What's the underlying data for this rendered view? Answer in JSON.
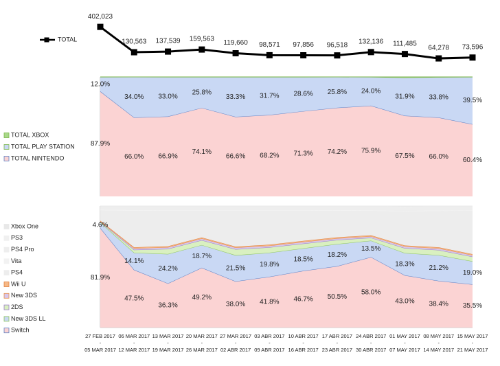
{
  "chart_data": [
    {
      "type": "line",
      "series": [
        {
          "name": "TOTAL",
          "color": "#000000",
          "values": [
            402023,
            130563,
            137539,
            159563,
            119660,
            98571,
            97856,
            96518,
            132136,
            111485,
            64278,
            73596
          ],
          "value_labels": [
            "402,023",
            "130,563",
            "137,539",
            "159,563",
            "119,660",
            "98,571",
            "97,856",
            "96,518",
            "132,136",
            "111,485",
            "64,278",
            "73,596"
          ]
        }
      ],
      "ylim": [
        0,
        420000
      ]
    },
    {
      "type": "area",
      "stacked": true,
      "ylim": [
        0,
        100
      ],
      "series": [
        {
          "name": "TOTAL NINTENDO",
          "color": "#fbd3d3",
          "line_color": "#5b7fc4",
          "values": [
            87.9,
            66.0,
            66.9,
            74.1,
            66.6,
            68.2,
            71.3,
            74.2,
            75.9,
            67.5,
            66.0,
            60.4
          ],
          "value_labels": [
            "87.9%",
            "66.0%",
            "66.9%",
            "74.1%",
            "66.6%",
            "68.2%",
            "71.3%",
            "74.2%",
            "75.9%",
            "67.5%",
            "66.0%",
            "60.4%"
          ]
        },
        {
          "name": "TOTAL PLAY STATION",
          "color": "#c9d8f4",
          "line_color": "#7ab648",
          "values": [
            12.0,
            34.0,
            33.0,
            25.8,
            33.3,
            31.7,
            28.6,
            25.8,
            24.0,
            31.9,
            33.8,
            39.5
          ],
          "value_labels": [
            "12.0%",
            "34.0%",
            "33.0%",
            "25.8%",
            "33.3%",
            "31.7%",
            "28.6%",
            "25.8%",
            "24.0%",
            "31.9%",
            "33.8%",
            "39.5%"
          ]
        },
        {
          "name": "TOTAL XBOX",
          "color": "#a9d88a",
          "line_color": "#7ab648",
          "values": [
            0.1,
            0.0,
            0.1,
            0.1,
            0.1,
            0.1,
            0.1,
            0.0,
            0.1,
            0.6,
            0.2,
            0.1
          ]
        }
      ]
    },
    {
      "type": "area",
      "stacked": true,
      "ylim": [
        0,
        100
      ],
      "categories": [
        [
          "27 FEB 2017",
          "05 MAR 2017"
        ],
        [
          "06 MAR 2017",
          "12 MAR 2017"
        ],
        [
          "13 MAR 2017",
          "19 MAR 2017"
        ],
        [
          "20 MAR 2017",
          "26 MAR 2017"
        ],
        [
          "27 MAR 2017",
          "02 ABR 2017"
        ],
        [
          "03 ABR 2017",
          "09 ABR 2017"
        ],
        [
          "10 ABR 2017",
          "16 ABR 2017"
        ],
        [
          "17 ABR 2017",
          "23 ABR 2017"
        ],
        [
          "24 ABR 2017",
          "30 ABR 2017"
        ],
        [
          "01 MAY 2017",
          "07 MAY 2017"
        ],
        [
          "08 MAY 2017",
          "14 MAY 2017"
        ],
        [
          "15 MAY 2017",
          "21 MAY 2017"
        ]
      ],
      "category_separator": "-",
      "series": [
        {
          "name": "Switch",
          "color": "#fbd3d3",
          "line_color": "#5b7fc4",
          "values": [
            81.9,
            47.5,
            36.3,
            49.2,
            38.0,
            41.8,
            46.7,
            50.5,
            58.0,
            43.0,
            38.4,
            35.5
          ],
          "value_labels": [
            "81.9%",
            "47.5%",
            "36.3%",
            "49.2%",
            "38.0%",
            "41.8%",
            "46.7%",
            "50.5%",
            "58.0%",
            "43.0%",
            "38.4%",
            "35.5%"
          ]
        },
        {
          "name": "New 3DS LL",
          "color": "#c9d8f4",
          "line_color": "#8cc45a",
          "values": [
            4.6,
            14.1,
            24.2,
            18.7,
            21.5,
            19.8,
            18.5,
            18.2,
            13.5,
            18.3,
            21.2,
            19.0
          ],
          "value_labels": [
            "4.6%",
            "14.1%",
            "24.2%",
            "18.7%",
            "21.5%",
            "19.8%",
            "18.5%",
            "18.2%",
            "13.5%",
            "18.3%",
            "21.2%",
            "19.0%"
          ]
        },
        {
          "name": "2DS",
          "color": "#d9f0c0",
          "line_color": "#9a7cc8",
          "values": [
            0.6,
            2.4,
            4.2,
            4.0,
            4.9,
            4.4,
            3.9,
            3.4,
            2.4,
            4.0,
            4.2,
            3.8
          ]
        },
        {
          "name": "New 3DS",
          "color": "#d8c6ec",
          "line_color": "#e8904a",
          "values": [
            0.4,
            1.2,
            1.4,
            1.4,
            1.4,
            1.4,
            1.4,
            1.3,
            1.2,
            1.4,
            1.4,
            1.3
          ]
        },
        {
          "name": "Wii U",
          "color": "#f6b886",
          "line_color": "#e08040",
          "values": [
            0.4,
            0.8,
            0.8,
            0.8,
            0.8,
            0.8,
            0.8,
            0.8,
            0.8,
            0.8,
            0.8,
            0.8
          ]
        },
        {
          "name": "PS4",
          "color": "#ededed",
          "line_color": "#ededed",
          "values": [
            8.5,
            30.0,
            29.0,
            21.8,
            29.3,
            27.7,
            24.6,
            21.8,
            20.0,
            27.9,
            29.8,
            35.5
          ]
        },
        {
          "name": "Vita",
          "color": "#f2f2f2",
          "line_color": "#f2f2f2",
          "values": [
            0.6,
            0.6,
            0.6,
            0.6,
            0.6,
            0.6,
            0.6,
            0.6,
            0.6,
            0.6,
            0.6,
            0.6
          ]
        },
        {
          "name": "PS4 Pro",
          "color": "#eeeeee",
          "line_color": "#eeeeee",
          "values": [
            2.5,
            3.0,
            3.0,
            3.0,
            3.0,
            3.0,
            3.0,
            3.0,
            3.0,
            3.0,
            3.0,
            3.0
          ]
        },
        {
          "name": "PS3",
          "color": "#f0f0f0",
          "line_color": "#f0f0f0",
          "values": [
            0.4,
            0.4,
            0.4,
            0.4,
            0.4,
            0.4,
            0.4,
            0.4,
            0.4,
            0.4,
            0.4,
            0.4
          ]
        },
        {
          "name": "Xbox One",
          "color": "#e8e8e8",
          "line_color": "#e8e8e8",
          "values": [
            0.1,
            0.0,
            0.1,
            0.1,
            0.1,
            0.1,
            0.1,
            0.0,
            0.1,
            0.6,
            0.2,
            0.1
          ]
        }
      ]
    }
  ]
}
